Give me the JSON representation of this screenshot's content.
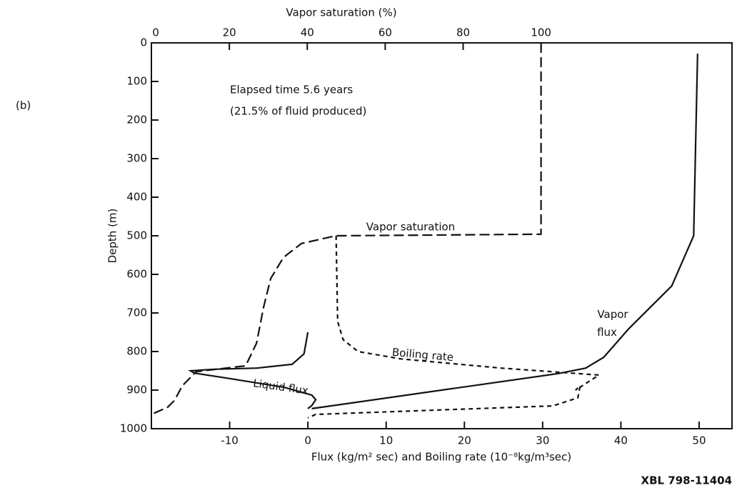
{
  "chart_data": {
    "type": "line",
    "panel_label": "(b)",
    "annotations": [
      "Elapsed time 5.6 years",
      "(21.5% of fluid produced)"
    ],
    "credit": "XBL 798-11404",
    "x_label": "Flux (kg/m² sec)   and   Boiling rate (10⁻⁸kg/m³sec)",
    "x2_label": "Vapor saturation (%)",
    "y_label": "Depth (m)",
    "xlim": [
      -20,
      54.2
    ],
    "xticks": [
      -10,
      0,
      10,
      20,
      30,
      40,
      50
    ],
    "x2lim": [
      0,
      149
    ],
    "x2ticks": [
      0,
      20,
      40,
      60,
      80,
      100
    ],
    "ylim": [
      0,
      1000
    ],
    "yticks": [
      0,
      100,
      200,
      300,
      400,
      500,
      600,
      700,
      800,
      900,
      1000
    ],
    "y_inverted": true,
    "series": [
      {
        "name": "Vapor saturation",
        "axis": "x2",
        "color": "#111",
        "line_style": "long-dash",
        "x": [
          100,
          100,
          47.3,
          38.5,
          33.9,
          30.6,
          28.8,
          27,
          24.2,
          11.5,
          7.9,
          6,
          4.2,
          0
        ],
        "values": [
          0,
          496,
          500,
          520,
          556,
          611,
          685,
          778,
          837,
          852,
          889,
          926,
          944,
          963
        ]
      },
      {
        "name": "Boiling rate",
        "color": "#111",
        "line_style": "short-dash",
        "x": [
          3.6,
          3.8,
          4.5,
          6.4,
          11.9,
          24.7,
          37.2,
          34.2,
          34.8,
          34.5,
          31.3,
          1,
          0
        ],
        "values": [
          500,
          722,
          769,
          800,
          819,
          843,
          861,
          900,
          889,
          920,
          941,
          963,
          972
        ]
      },
      {
        "name": "Liquid flux",
        "color": "#111",
        "line_style": "solid",
        "x": [
          0,
          -0.5,
          -2,
          -6.5,
          -12,
          -15,
          -14.5,
          -10,
          -3,
          0.5,
          1,
          0.5,
          0
        ],
        "values": [
          750,
          806,
          833,
          843,
          846,
          850,
          856,
          870,
          893,
          913,
          925,
          940,
          948
        ]
      },
      {
        "name": "Vapor flux",
        "color": "#111",
        "line_style": "solid",
        "x": [
          49.8,
          49.3,
          46.5,
          41,
          37.8,
          35.5,
          32,
          0.5
        ],
        "values": [
          28,
          500,
          630,
          741,
          815,
          843,
          857,
          948
        ]
      }
    ]
  }
}
